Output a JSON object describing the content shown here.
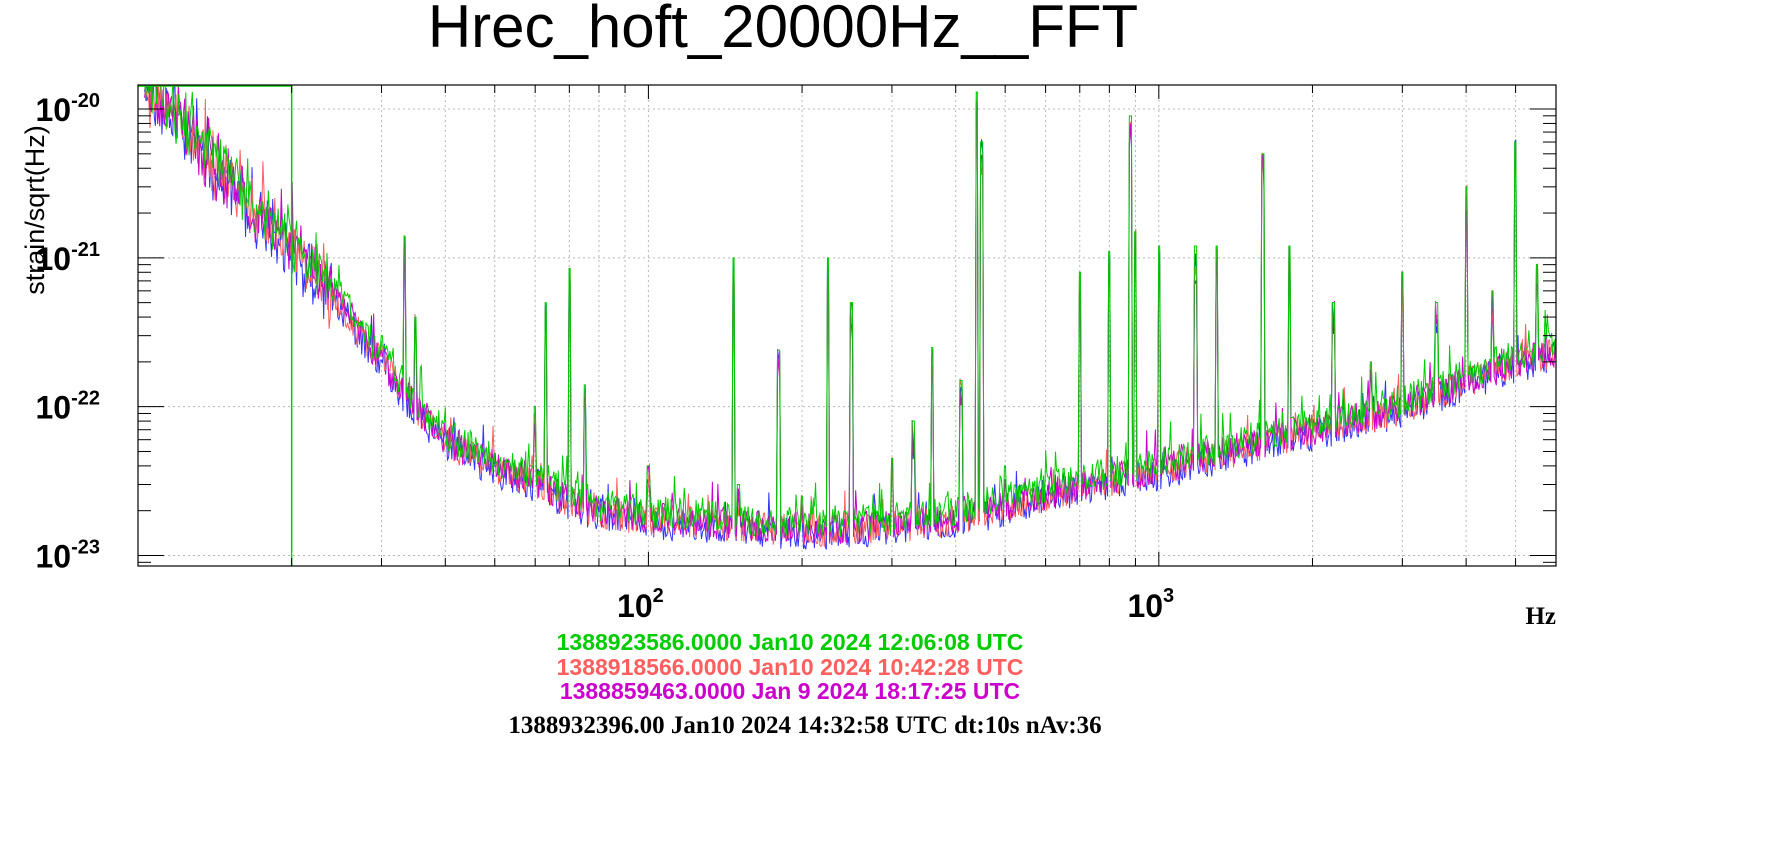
{
  "chart_data": {
    "type": "line",
    "title": "Hrec_hoft_20000Hz__FFT",
    "xlabel": "Hz",
    "ylabel": "strain/sqrt(Hz)",
    "xscale": "log",
    "yscale": "log",
    "xlim": [
      10,
      6000
    ],
    "ylim": [
      8.5e-24,
      1.45e-20
    ],
    "grid": true,
    "x_ticks": [
      {
        "value": 100,
        "base": "10",
        "exp": "2"
      },
      {
        "value": 1000,
        "base": "10",
        "exp": "3"
      }
    ],
    "y_ticks": [
      {
        "value": 1e-20,
        "base": "10",
        "exp": "-20"
      },
      {
        "value": 1e-21,
        "base": "10",
        "exp": "-21"
      },
      {
        "value": 1e-22,
        "base": "10",
        "exp": "-22"
      },
      {
        "value": 1e-23,
        "base": "10",
        "exp": "-23"
      }
    ],
    "baseline": [
      [
        10.5,
        1.3e-20
      ],
      [
        12,
        9e-21
      ],
      [
        13,
        6e-21
      ],
      [
        15,
        3.5e-21
      ],
      [
        17,
        2e-21
      ],
      [
        20,
        1.2e-21
      ],
      [
        25,
        5e-22
      ],
      [
        30,
        2e-22
      ],
      [
        35,
        1e-22
      ],
      [
        40,
        6e-23
      ],
      [
        50,
        4e-23
      ],
      [
        60,
        3.2e-23
      ],
      [
        70,
        2.4e-23
      ],
      [
        80,
        2e-23
      ],
      [
        100,
        1.8e-23
      ],
      [
        150,
        1.6e-23
      ],
      [
        200,
        1.5e-23
      ],
      [
        300,
        1.6e-23
      ],
      [
        400,
        1.8e-23
      ],
      [
        500,
        2.2e-23
      ],
      [
        700,
        3e-23
      ],
      [
        1000,
        3.8e-23
      ],
      [
        1500,
        5.5e-23
      ],
      [
        2000,
        7e-23
      ],
      [
        3000,
        1e-22
      ],
      [
        4000,
        1.5e-22
      ],
      [
        5000,
        2e-22
      ],
      [
        6000,
        2.4e-22
      ]
    ],
    "lines": [
      {
        "f": 30,
        "amp": 3e-22
      },
      {
        "f": 33.3,
        "amp": 1.4e-21
      },
      {
        "f": 35,
        "amp": 4e-22
      },
      {
        "f": 40,
        "amp": 5e-23
      },
      {
        "f": 50,
        "amp": 4e-23
      },
      {
        "f": 60,
        "amp": 1e-22
      },
      {
        "f": 63,
        "amp": 5e-22
      },
      {
        "f": 70,
        "amp": 8.5e-22
      },
      {
        "f": 75,
        "amp": 1.4e-22
      },
      {
        "f": 100,
        "amp": 4e-23
      },
      {
        "f": 147,
        "amp": 1e-21
      },
      {
        "f": 150,
        "amp": 3e-23
      },
      {
        "f": 180,
        "amp": 2.4e-22
      },
      {
        "f": 200,
        "amp": 2.5e-23
      },
      {
        "f": 225,
        "amp": 1e-21
      },
      {
        "f": 250,
        "amp": 5e-22
      },
      {
        "f": 300,
        "amp": 4.5e-23
      },
      {
        "f": 330,
        "amp": 8e-23
      },
      {
        "f": 360,
        "amp": 2.5e-22
      },
      {
        "f": 410,
        "amp": 1.5e-22
      },
      {
        "f": 440,
        "amp": 1.3e-20
      },
      {
        "f": 450,
        "amp": 6e-21
      },
      {
        "f": 500,
        "amp": 4e-23
      },
      {
        "f": 700,
        "amp": 8e-22
      },
      {
        "f": 800,
        "amp": 1.1e-21
      },
      {
        "f": 880,
        "amp": 9e-21
      },
      {
        "f": 900,
        "amp": 1.5e-21
      },
      {
        "f": 1000,
        "amp": 1.2e-21
      },
      {
        "f": 1180,
        "amp": 1.2e-21
      },
      {
        "f": 1300,
        "amp": 1.2e-21
      },
      {
        "f": 1600,
        "amp": 5e-21
      },
      {
        "f": 1800,
        "amp": 1.2e-21
      },
      {
        "f": 2200,
        "amp": 5e-22
      },
      {
        "f": 2600,
        "amp": 2e-22
      },
      {
        "f": 3000,
        "amp": 8e-22
      },
      {
        "f": 3500,
        "amp": 5e-22
      },
      {
        "f": 4000,
        "amp": 3e-21
      },
      {
        "f": 4500,
        "amp": 6e-22
      },
      {
        "f": 5000,
        "amp": 6e-21
      },
      {
        "f": 5500,
        "amp": 9e-22
      }
    ],
    "series": [
      {
        "name": "1388923586.0000 Jan10 2024 12:06:08 UTC",
        "color": "#00cc00",
        "scale": 1.1
      },
      {
        "name": "1388918566.0000 Jan10 2024 10:42:28 UTC",
        "color": "#ff5f5f",
        "scale": 0.97
      },
      {
        "name": "1388859463.0000 Jan 9 2024 18:17:25 UTC",
        "color": "#cc00cc",
        "scale": 1.0
      },
      {
        "name": "",
        "color": "#3333ff",
        "scale": 0.92
      }
    ],
    "footer": "1388932396.00 Jan10 2024 14:32:58 UTC dt:10s nAv:36"
  }
}
